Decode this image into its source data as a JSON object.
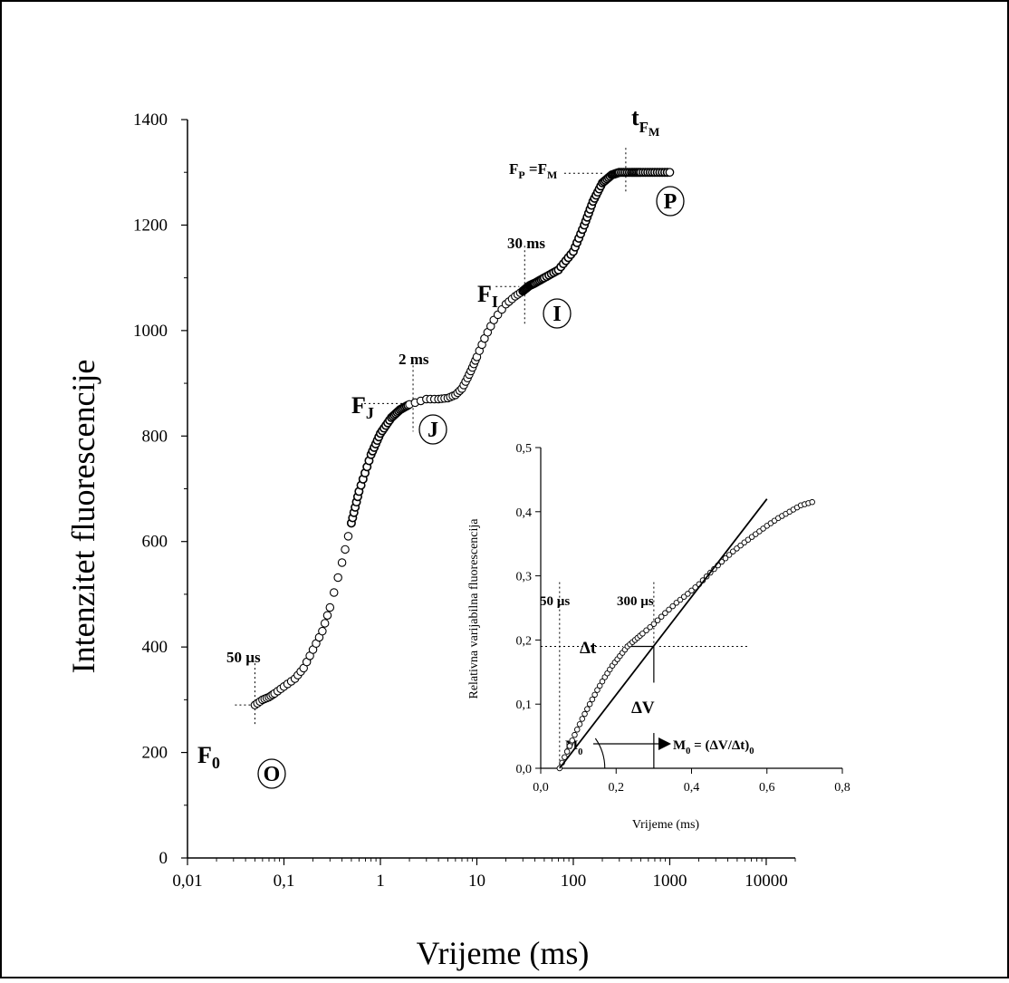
{
  "chart_data": [
    {
      "type": "scatter",
      "xscale": "log",
      "xlabel": "Vrijeme (ms)",
      "ylabel": "Intenzitet  fluorescencije",
      "xlim": [
        0.01,
        20000
      ],
      "ylim": [
        0,
        1400
      ],
      "xticks": [
        "0,01",
        "0,1",
        "1",
        "10",
        "100",
        "1000",
        "10000"
      ],
      "xtick_values": [
        0.01,
        0.1,
        1,
        10,
        100,
        1000,
        10000
      ],
      "yticks": [
        "0",
        "200",
        "400",
        "600",
        "800",
        "1000",
        "1200",
        "1400"
      ],
      "ytick_values": [
        0,
        200,
        400,
        600,
        800,
        1000,
        1200,
        1400
      ],
      "series": [
        {
          "x": [
            0.05,
            0.06,
            0.07,
            0.08,
            0.1,
            0.13,
            0.16,
            0.2,
            0.25,
            0.3,
            0.4,
            0.5,
            0.6,
            0.8,
            1.0,
            1.3,
            1.6,
            2.0,
            3,
            4,
            5,
            6,
            7,
            8,
            9,
            10,
            12,
            15,
            20,
            25,
            30,
            35,
            40,
            50,
            70,
            100,
            130,
            160,
            200,
            250,
            300,
            400,
            500,
            700,
            1000
          ],
          "y": [
            290,
            300,
            305,
            312,
            325,
            340,
            360,
            395,
            430,
            475,
            560,
            635,
            695,
            765,
            805,
            835,
            850,
            860,
            870,
            870,
            872,
            878,
            890,
            910,
            930,
            950,
            985,
            1020,
            1050,
            1065,
            1075,
            1085,
            1090,
            1100,
            1115,
            1150,
            1200,
            1245,
            1280,
            1295,
            1300,
            1300,
            1300,
            1300,
            1300
          ]
        }
      ],
      "annotations": {
        "F0": {
          "label": "F",
          "sub": "0"
        },
        "FJ": {
          "label": "F",
          "sub": "J"
        },
        "FI": {
          "label": "F",
          "sub": "I"
        },
        "FP": {
          "label": "F",
          "sub": "P",
          "eq": " =F",
          "sub2": "M"
        },
        "tFM": {
          "label": "t",
          "sub": "F",
          "subsub": "M"
        },
        "t50": "50 µs",
        "t2": "2 ms",
        "t30": "30 ms",
        "phases": [
          "O",
          "J",
          "I",
          "P"
        ]
      }
    },
    {
      "type": "scatter",
      "xlabel": "Vrijeme (ms)",
      "ylabel": "Relativna varijabilna  fluorescencija",
      "xlim": [
        0,
        0.8
      ],
      "ylim": [
        0,
        0.5
      ],
      "xticks": [
        "0,0",
        "0,2",
        "0,4",
        "0,6",
        "0,8"
      ],
      "xtick_values": [
        0,
        0.2,
        0.4,
        0.6,
        0.8
      ],
      "yticks": [
        "0,0",
        "0,1",
        "0,2",
        "0,3",
        "0,4",
        "0,5"
      ],
      "ytick_values": [
        0,
        0.1,
        0.2,
        0.3,
        0.4,
        0.5
      ],
      "series": [
        {
          "x": [
            0.05,
            0.07,
            0.09,
            0.11,
            0.13,
            0.15,
            0.17,
            0.19,
            0.21,
            0.23,
            0.25,
            0.27,
            0.3,
            0.33,
            0.36,
            0.39,
            0.42,
            0.45,
            0.48,
            0.51,
            0.54,
            0.57,
            0.6,
            0.63,
            0.66,
            0.69,
            0.72
          ],
          "y": [
            0.0,
            0.026,
            0.052,
            0.077,
            0.1,
            0.122,
            0.142,
            0.16,
            0.175,
            0.19,
            0.2,
            0.21,
            0.225,
            0.242,
            0.258,
            0.272,
            0.287,
            0.305,
            0.322,
            0.338,
            0.352,
            0.365,
            0.378,
            0.39,
            0.4,
            0.41,
            0.415
          ]
        }
      ],
      "tangent": {
        "x": [
          0.05,
          0.6
        ],
        "y": [
          0.0,
          0.42
        ]
      },
      "annotations": {
        "t50": "50 µs",
        "t300": "300 µs",
        "dt": "Δt",
        "dv": "ΔV",
        "m0": {
          "label": "M",
          "sub": "0"
        },
        "formula": {
          "label": "M",
          "sub": "0",
          "rest": " = (ΔV/Δt)",
          "sub2": "0"
        }
      }
    }
  ]
}
